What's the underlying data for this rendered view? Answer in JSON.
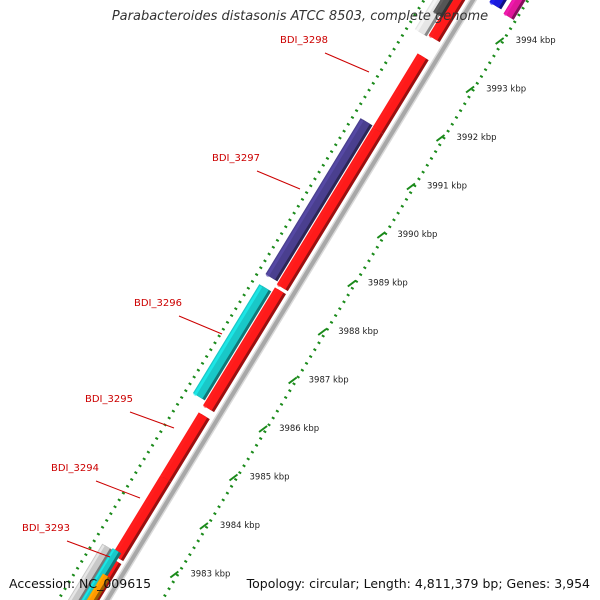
{
  "title": "Parabacteroides distasonis ATCC 8503, complete genome",
  "footer": {
    "accession": "Accession: NC_009615",
    "summary": "Topology: circular; Length: 4,811,379 bp; Genes: 3,954"
  },
  "kbp_ticks": [
    {
      "label": "3994 kbp",
      "value": 3994
    },
    {
      "label": "3993 kbp",
      "value": 3993
    },
    {
      "label": "3992 kbp",
      "value": 3992
    },
    {
      "label": "3991 kbp",
      "value": 3991
    },
    {
      "label": "3990 kbp",
      "value": 3990
    },
    {
      "label": "3989 kbp",
      "value": 3989
    },
    {
      "label": "3988 kbp",
      "value": 3988
    },
    {
      "label": "3987 kbp",
      "value": 3987
    },
    {
      "label": "3986 kbp",
      "value": 3986
    },
    {
      "label": "3985 kbp",
      "value": 3985
    },
    {
      "label": "3984 kbp",
      "value": 3984
    },
    {
      "label": "3983 kbp",
      "value": 3983
    }
  ],
  "gene_labels": [
    "BDI_3298",
    "BDI_3297",
    "BDI_3296",
    "BDI_3295",
    "BDI_3294",
    "BDI_3293"
  ],
  "colors": {
    "gene_label": "#cc0000",
    "forward_cds": "#ff1a1a",
    "purple_cds": "#4a3f8f",
    "cyan_cds": "#19c8c8",
    "dotted_track": "#1a8a1a",
    "backbone": "#a8a8a8",
    "magenta_cds": "#e0179a",
    "blue_cds": "#1a1adb"
  }
}
